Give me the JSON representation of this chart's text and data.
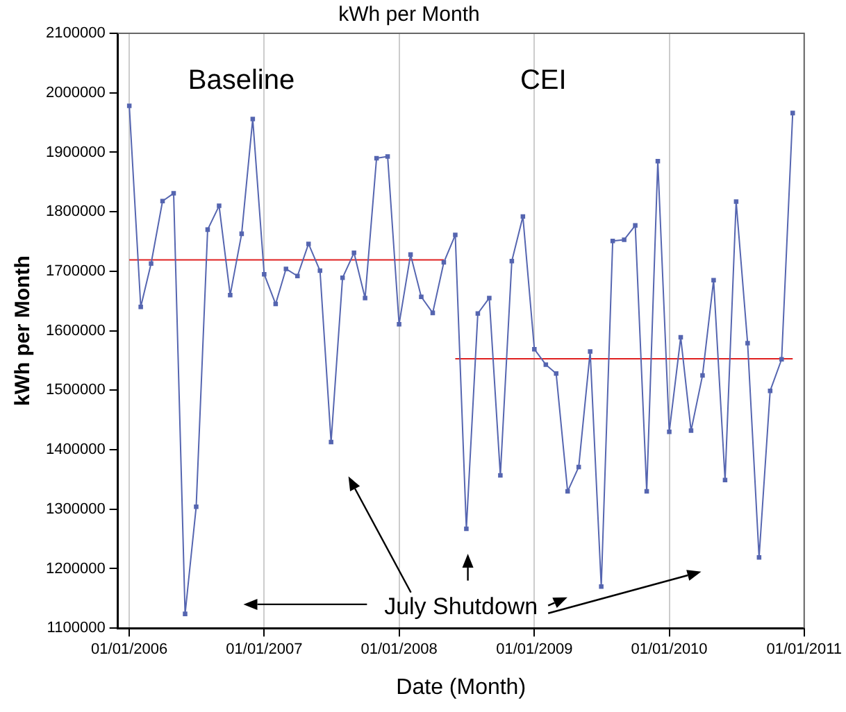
{
  "chart_data": {
    "type": "line",
    "title": "kWh per Month",
    "xlabel": "Date (Month)",
    "ylabel": "kWh per Month",
    "x": [
      "2006-01",
      "2006-02",
      "2006-03",
      "2006-04",
      "2006-05",
      "2006-06",
      "2006-07",
      "2006-08",
      "2006-09",
      "2006-10",
      "2006-11",
      "2006-12",
      "2007-01",
      "2007-02",
      "2007-03",
      "2007-04",
      "2007-05",
      "2007-06",
      "2007-07",
      "2007-08",
      "2007-09",
      "2007-10",
      "2007-11",
      "2007-12",
      "2008-01",
      "2008-02",
      "2008-03",
      "2008-04",
      "2008-05",
      "2008-06",
      "2008-07",
      "2008-08",
      "2008-09",
      "2008-10",
      "2008-11",
      "2008-12",
      "2009-01",
      "2009-02",
      "2009-03",
      "2009-04",
      "2009-05",
      "2009-06",
      "2009-07",
      "2009-08",
      "2009-09",
      "2009-10",
      "2009-11",
      "2009-12",
      "2010-01",
      "2010-02",
      "2010-03",
      "2010-04",
      "2010-05",
      "2010-06",
      "2010-07",
      "2010-08",
      "2010-09",
      "2010-10",
      "2010-11",
      "2010-12"
    ],
    "series": [
      {
        "color": "#5565b0",
        "values": [
          1978000,
          1640000,
          1713000,
          1818000,
          1831000,
          1124000,
          1304000,
          1770000,
          1810000,
          1660000,
          1763000,
          1956000,
          1695000,
          1645000,
          1704000,
          1692000,
          1746000,
          1701000,
          1413000,
          1689000,
          1731000,
          1655000,
          1890000,
          1893000,
          1611000,
          1728000,
          1657000,
          1630000,
          1715000,
          1761000,
          1267000,
          1629000,
          1655000,
          1357000,
          1717000,
          1792000,
          1569000,
          1543000,
          1528000,
          1330000,
          1371000,
          1565000,
          1170000,
          1751000,
          1753000,
          1777000,
          1330000,
          1885000,
          1430000,
          1589000,
          1432000,
          1525000,
          1685000,
          1349000,
          1817000,
          1579000,
          1219000,
          1499000,
          1552000,
          1966000
        ]
      },
      {
        "type": "line",
        "color": "#e02020",
        "marker": "none",
        "x": [
          "2006-01",
          "2008-05"
        ],
        "values": [
          1719000,
          1719000
        ]
      },
      {
        "type": "line",
        "color": "#e02020",
        "marker": "none",
        "x": [
          "2008-06",
          "2010-12"
        ],
        "values": [
          1553000,
          1553000
        ]
      }
    ],
    "xlim": [
      "2005-12-01",
      "2011-01-01"
    ],
    "xticks": [
      {
        "value": "2006-01-01",
        "label": "01/01/2006"
      },
      {
        "value": "2007-01-01",
        "label": "01/01/2007"
      },
      {
        "value": "2008-01-01",
        "label": "01/01/2008"
      },
      {
        "value": "2009-01-01",
        "label": "01/01/2009"
      },
      {
        "value": "2010-01-01",
        "label": "01/01/2010"
      },
      {
        "value": "2011-01-01",
        "label": "01/01/2011"
      }
    ],
    "ylim": [
      1100000,
      2100000
    ],
    "yticks": [
      1100000,
      1200000,
      1300000,
      1400000,
      1500000,
      1600000,
      1700000,
      1800000,
      1900000,
      2000000,
      2100000
    ],
    "grid": "x",
    "legend": false,
    "marker": "square",
    "line_style": "solid",
    "annotations": [
      "Baseline",
      "CEI",
      "July Shutdown"
    ]
  }
}
